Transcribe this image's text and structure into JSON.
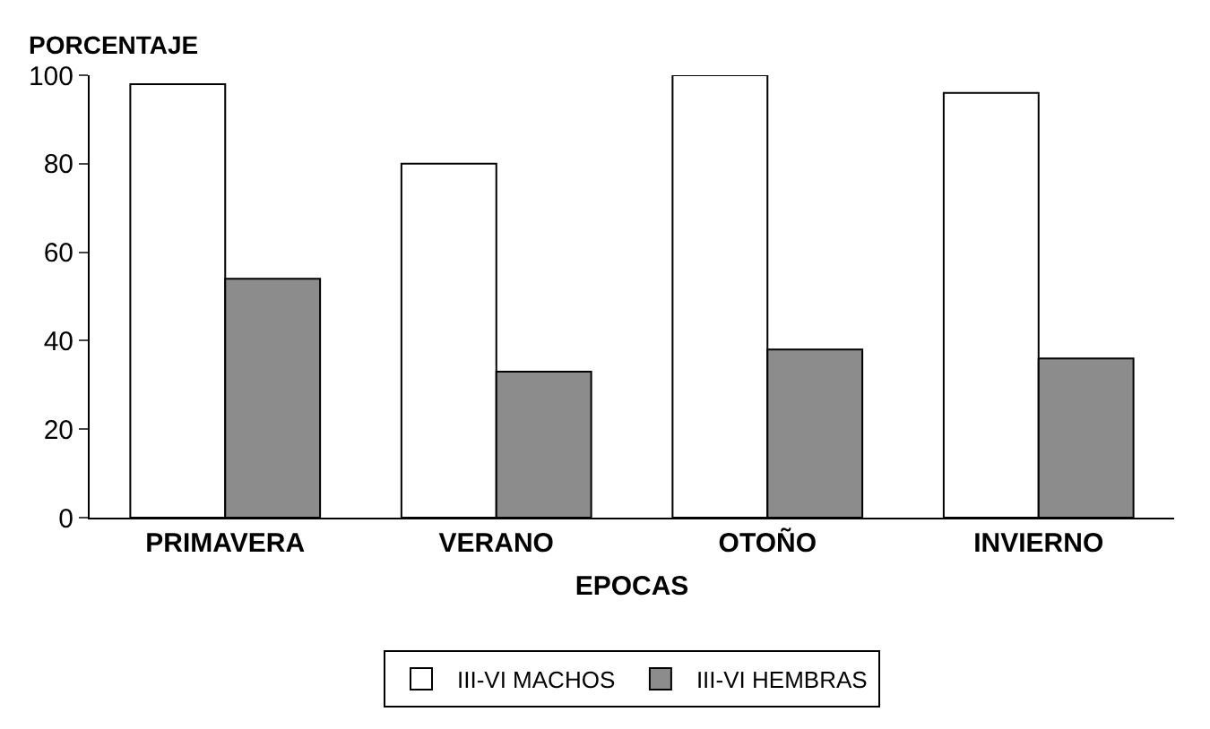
{
  "chart_data": {
    "type": "bar",
    "ylabel": "PORCENTAJE",
    "xlabel": "EPOCAS",
    "categories": [
      "PRIMAVERA",
      "VERANO",
      "OTOÑO",
      "INVIERNO"
    ],
    "series": [
      {
        "name": "III-VI MACHOS",
        "color": "#ffffff",
        "values": [
          98,
          80,
          100,
          96
        ]
      },
      {
        "name": "III-VI HEMBRAS",
        "color": "#8c8c8c",
        "values": [
          54,
          33,
          38,
          36
        ]
      }
    ],
    "ylim": [
      0,
      100
    ],
    "yticks": [
      0,
      20,
      40,
      60,
      80,
      100
    ],
    "grid": false,
    "legend": "bottom"
  }
}
